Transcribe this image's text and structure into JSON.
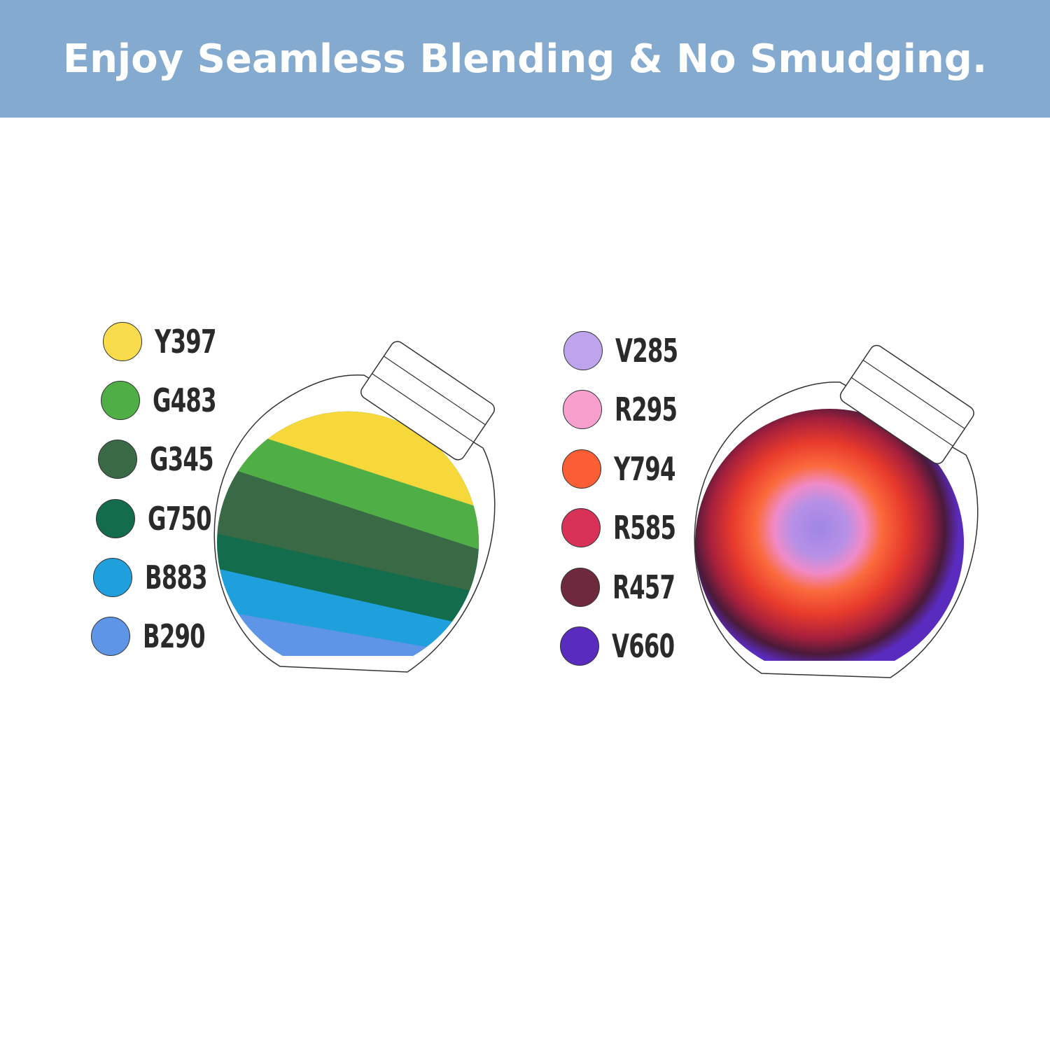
{
  "banner": {
    "title": "Enjoy Seamless Blending & No Smudging.",
    "background": "#84aad0"
  },
  "left_jar": {
    "swatches": [
      {
        "code": "Y397",
        "color": "#f8dc4e"
      },
      {
        "code": "G483",
        "color": "#4fae45"
      },
      {
        "code": "G345",
        "color": "#3a6a45"
      },
      {
        "code": "G750",
        "color": "#136c4c"
      },
      {
        "code": "B883",
        "color": "#1fa0dc"
      },
      {
        "code": "B290",
        "color": "#5e95e6"
      }
    ]
  },
  "right_jar": {
    "swatches": [
      {
        "code": "V285",
        "color": "#bda4ec"
      },
      {
        "code": "R295",
        "color": "#f7a0cd"
      },
      {
        "code": "Y794",
        "color": "#fb5e34"
      },
      {
        "code": "R585",
        "color": "#d93258"
      },
      {
        "code": "R457",
        "color": "#6e2a3c"
      },
      {
        "code": "V660",
        "color": "#5a2bbf"
      }
    ]
  }
}
